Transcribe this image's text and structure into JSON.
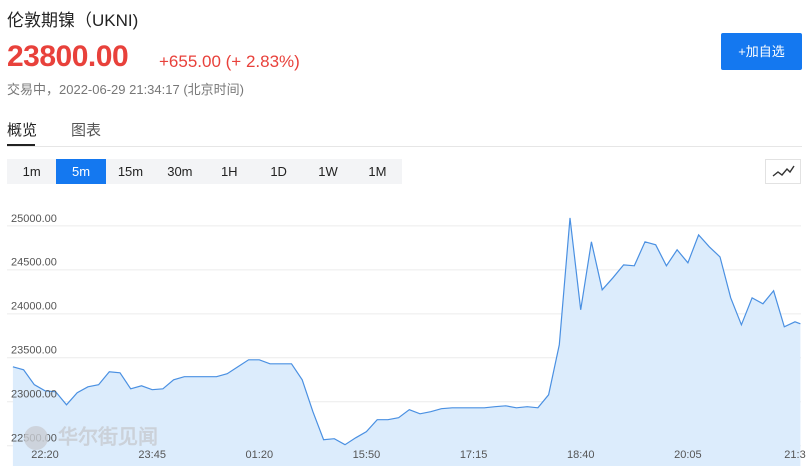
{
  "header": {
    "title": "伦敦期镍（UKNI)",
    "price": "23800.00",
    "change": "+655.00 (+ 2.83%)",
    "status": "交易中，2022-06-29 21:34:17 (北京时间)",
    "button": "+加自选"
  },
  "tabs": [
    "概览",
    "图表"
  ],
  "active_tab": 0,
  "intervals": [
    "1m",
    "5m",
    "15m",
    "30m",
    "1H",
    "1D",
    "1W",
    "1M"
  ],
  "active_interval": 1,
  "watermark": "华尔街见闻",
  "chart_data": {
    "type": "area",
    "color": "#4a90e2",
    "fill": "#dcecfc",
    "x": [
      -3,
      -2,
      -1,
      0,
      1,
      2,
      3,
      4,
      5,
      6,
      7,
      8,
      9,
      10,
      11,
      12,
      13,
      14,
      15,
      16,
      17,
      18,
      19,
      20,
      21,
      22,
      23,
      24,
      25,
      26,
      27,
      28,
      29,
      30,
      31,
      32,
      33,
      34,
      35,
      36,
      37,
      38,
      39,
      40,
      41,
      42,
      43,
      44,
      45,
      46,
      47,
      48,
      49,
      50,
      51,
      52,
      53,
      54,
      55,
      56,
      57,
      58,
      59,
      60,
      61,
      62,
      63,
      64,
      65,
      66,
      67,
      68,
      69,
      70,
      70.5
    ],
    "values": [
      23318,
      23284,
      23114,
      23045,
      23034,
      22886,
      23023,
      23091,
      23114,
      23261,
      23250,
      23068,
      23102,
      23057,
      23068,
      23170,
      23205,
      23205,
      23205,
      23205,
      23239,
      23318,
      23398,
      23398,
      23352,
      23352,
      23352,
      23170,
      22807,
      22489,
      22500,
      22432,
      22511,
      22580,
      22716,
      22716,
      22739,
      22830,
      22784,
      22807,
      22841,
      22852,
      22852,
      22852,
      22852,
      22864,
      22875,
      22852,
      22864,
      22852,
      23000,
      23568,
      25011,
      23966,
      24739,
      24193,
      24330,
      24477,
      24466,
      24739,
      24705,
      24466,
      24648,
      24500,
      24818,
      24682,
      24568,
      24102,
      23795,
      24102,
      24034,
      24182,
      23773,
      23830,
      23807
    ],
    "xlim": [
      -3.55,
      70.56
    ],
    "xticks": [
      {
        "value": 0,
        "label": "22:20"
      },
      {
        "value": 10,
        "label": "23:45"
      },
      {
        "value": 20,
        "label": "01:20"
      },
      {
        "value": 30,
        "label": "15:50"
      },
      {
        "value": 40,
        "label": "17:15"
      },
      {
        "value": 50,
        "label": "18:40"
      },
      {
        "value": 60,
        "label": "20:05"
      },
      {
        "value": 70,
        "label": "21:3"
      }
    ],
    "ylim": [
      22190,
      25260
    ],
    "yticks": [
      {
        "value": 22500,
        "label": "22500.00"
      },
      {
        "value": 23000,
        "label": "23000.00"
      },
      {
        "value": 23500,
        "label": "23500.00"
      },
      {
        "value": 24000,
        "label": "24000.00"
      },
      {
        "value": 24500,
        "label": "24500.00"
      },
      {
        "value": 25000,
        "label": "25000.00"
      }
    ],
    "grid": true
  }
}
